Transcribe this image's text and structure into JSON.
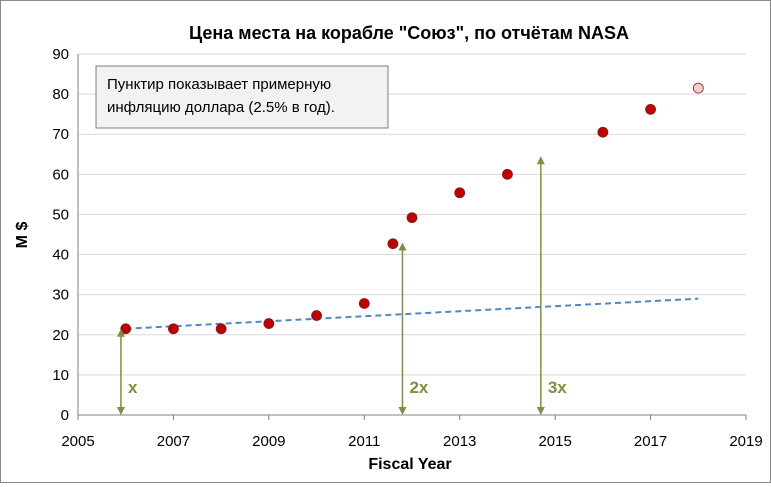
{
  "chart_data": {
    "type": "scatter",
    "title": "Цена места на корабле \"Союз\", по отчётам NASA",
    "xlabel": "Fiscal Year",
    "ylabel": "M $",
    "xlim": [
      2005,
      2019
    ],
    "ylim": [
      0,
      90
    ],
    "x_ticks": [
      "2005",
      "2007",
      "2009",
      "2011",
      "2013",
      "2015",
      "2017",
      "2019"
    ],
    "y_ticks": [
      "0",
      "10",
      "20",
      "30",
      "40",
      "50",
      "60",
      "70",
      "80",
      "90"
    ],
    "grid": true,
    "series": [
      {
        "type": "scatter",
        "color": "#c00000",
        "points": [
          {
            "x": 2006,
            "y": 21.5
          },
          {
            "x": 2007,
            "y": 21.5
          },
          {
            "x": 2008,
            "y": 21.5
          },
          {
            "x": 2009,
            "y": 22.8
          },
          {
            "x": 2010,
            "y": 24.8
          },
          {
            "x": 2011,
            "y": 27.8
          },
          {
            "x": 2011.6,
            "y": 42.7
          },
          {
            "x": 2012,
            "y": 49.2
          },
          {
            "x": 2013,
            "y": 55.4
          },
          {
            "x": 2014,
            "y": 60.0
          },
          {
            "x": 2016,
            "y": 70.5
          },
          {
            "x": 2017,
            "y": 76.2
          }
        ]
      },
      {
        "type": "scatter",
        "color": "#f4cccc",
        "points": [
          {
            "x": 2018,
            "y": 81.5
          }
        ]
      },
      {
        "type": "line",
        "style": "dashed",
        "color": "#4f88c6",
        "points": [
          {
            "x": 2006,
            "y": 21.5
          },
          {
            "x": 2018,
            "y": 29.0
          }
        ]
      }
    ],
    "annotations": {
      "note": "Пунктир показывает примерную инфляцию доллара (2.5% в год).",
      "arrow_color": "#77933c",
      "arrows": [
        {
          "label": "x",
          "x": 2005.9,
          "y_from": 0,
          "y_to": 21.5
        },
        {
          "label": "2x",
          "x": 2011.8,
          "y_from": 0,
          "y_to": 43
        },
        {
          "label": "3x",
          "x": 2014.7,
          "y_from": 0,
          "y_to": 64.5
        }
      ]
    }
  }
}
